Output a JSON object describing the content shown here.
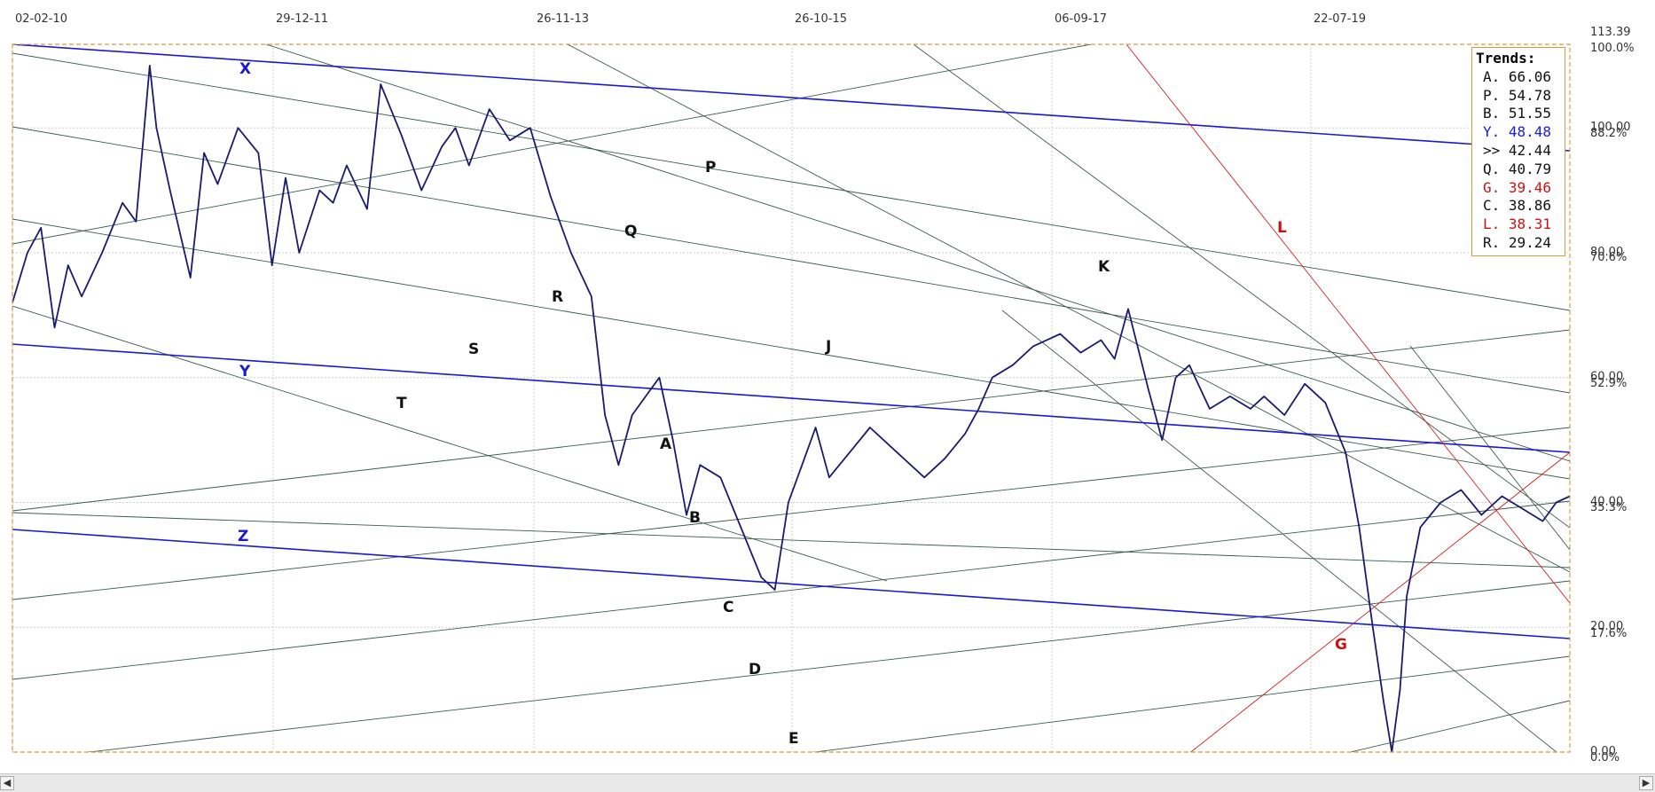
{
  "chart_data": {
    "type": "line",
    "title": "",
    "x_tick_labels": [
      "02-02-10",
      "29-12-11",
      "26-11-13",
      "26-10-15",
      "06-09-17",
      "22-07-19"
    ],
    "x_range_years": [
      2010.09,
      2021.55
    ],
    "y_tick_labels": [
      "113.39",
      "100.00",
      "80.00",
      "60.00",
      "40.00",
      "20.00",
      "0.00"
    ],
    "y_tick_values": [
      113.39,
      100,
      80,
      60,
      40,
      20,
      0
    ],
    "pct_tick_labels": [
      "100.0%",
      "88.2%",
      "70.6%",
      "52.9%",
      "35.3%",
      "17.6%",
      "0.0%"
    ],
    "ylim": [
      0,
      113.39
    ],
    "grid": true,
    "series": [
      {
        "color": "#1a1a6e",
        "x": [
          2010.09,
          2010.2,
          2010.3,
          2010.4,
          2010.5,
          2010.6,
          2010.75,
          2010.9,
          2011.0,
          2011.1,
          2011.15,
          2011.25,
          2011.4,
          2011.5,
          2011.6,
          2011.75,
          2011.9,
          2012.0,
          2012.1,
          2012.2,
          2012.35,
          2012.45,
          2012.55,
          2012.7,
          2012.8,
          2012.95,
          2013.1,
          2013.25,
          2013.35,
          2013.45,
          2013.6,
          2013.75,
          2013.9,
          2014.05,
          2014.2,
          2014.35,
          2014.45,
          2014.55,
          2014.65,
          2014.75,
          2014.85,
          2014.95,
          2015.05,
          2015.15,
          2015.3,
          2015.45,
          2015.6,
          2015.7,
          2015.8,
          2015.9,
          2016.0,
          2016.1,
          2016.25,
          2016.4,
          2016.6,
          2016.8,
          2016.95,
          2017.1,
          2017.2,
          2017.3,
          2017.45,
          2017.6,
          2017.8,
          2017.95,
          2018.1,
          2018.2,
          2018.3,
          2018.45,
          2018.55,
          2018.65,
          2018.75,
          2018.9,
          2019.05,
          2019.2,
          2019.3,
          2019.45,
          2019.6,
          2019.75,
          2019.9,
          2020.0,
          2020.1,
          2020.18,
          2020.24,
          2020.3,
          2020.35,
          2020.45,
          2020.6,
          2020.75,
          2020.9,
          2021.05,
          2021.2,
          2021.35,
          2021.45,
          2021.55
        ],
        "y": [
          72,
          80,
          84,
          68,
          78,
          73,
          80,
          88,
          85,
          110,
          100,
          90,
          76,
          96,
          91,
          100,
          96,
          78,
          92,
          80,
          90,
          88,
          94,
          87,
          107,
          99,
          90,
          97,
          100,
          94,
          103,
          98,
          100,
          89,
          80,
          73,
          54,
          46,
          54,
          57,
          60,
          50,
          38,
          46,
          44,
          36,
          28,
          26,
          40,
          46,
          52,
          44,
          48,
          52,
          48,
          44,
          47,
          51,
          55,
          60,
          62,
          65,
          67,
          64,
          66,
          63,
          71,
          58,
          50,
          60,
          62,
          55,
          57,
          55,
          57,
          54,
          59,
          56,
          48,
          36,
          20,
          8,
          0,
          10,
          25,
          36,
          40,
          42,
          38,
          41,
          39,
          37,
          40,
          41
        ]
      }
    ],
    "trend_labels": [
      {
        "text": "X",
        "color": "#1a1acc"
      },
      {
        "text": "Y",
        "color": "#1a1acc"
      },
      {
        "text": "Z",
        "color": "#1a1acc"
      },
      {
        "text": "P",
        "color": "#111111"
      },
      {
        "text": "Q",
        "color": "#111111"
      },
      {
        "text": "R",
        "color": "#111111"
      },
      {
        "text": "S",
        "color": "#111111"
      },
      {
        "text": "T",
        "color": "#111111"
      },
      {
        "text": "A",
        "color": "#111111"
      },
      {
        "text": "B",
        "color": "#111111"
      },
      {
        "text": "C",
        "color": "#111111"
      },
      {
        "text": "D",
        "color": "#111111"
      },
      {
        "text": "E",
        "color": "#111111"
      },
      {
        "text": "J",
        "color": "#111111"
      },
      {
        "text": "K",
        "color": "#111111"
      },
      {
        "text": "L",
        "color": "#cc1111"
      },
      {
        "text": "G",
        "color": "#cc1111"
      }
    ]
  },
  "legend": {
    "title": "Trends:",
    "rows": [
      {
        "text": "A. 66.06",
        "color": "#111111"
      },
      {
        "text": "P. 54.78",
        "color": "#111111"
      },
      {
        "text": "B. 51.55",
        "color": "#111111"
      },
      {
        "text": "Y. 48.48",
        "color": "#1a1acc"
      },
      {
        "text": ">> 42.44",
        "color": "#111111"
      },
      {
        "text": "Q. 40.79",
        "color": "#111111"
      },
      {
        "text": "G. 39.46",
        "color": "#cc1111"
      },
      {
        "text": "C. 38.86",
        "color": "#111111"
      },
      {
        "text": "L. 38.31",
        "color": "#cc1111"
      },
      {
        "text": "R. 29.24",
        "color": "#111111"
      }
    ]
  },
  "colors": {
    "price": "#1a1a6e",
    "blue_trend": "#1a1acc",
    "green_trend": "#3d5a4e",
    "red_trend": "#cc2222",
    "frame": "#d99a3a",
    "grid": "#cfcfcf"
  },
  "scrollbar": {
    "left_arrow": "◀",
    "right_arrow": "▶"
  }
}
